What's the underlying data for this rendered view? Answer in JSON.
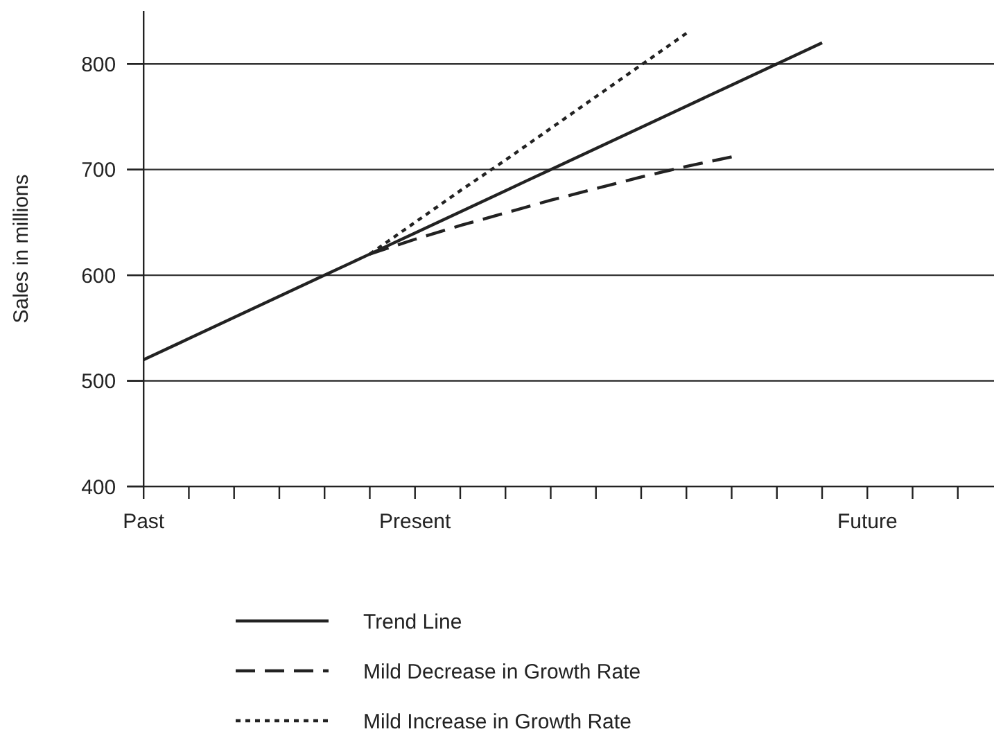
{
  "chart_data": {
    "type": "line",
    "ylabel": "Sales in millions",
    "ylim": [
      400,
      850
    ],
    "yticks": [
      400,
      500,
      600,
      700,
      800
    ],
    "categories": [
      "Past",
      null,
      null,
      null,
      null,
      null,
      "Present",
      null,
      null,
      null,
      null,
      null,
      null,
      null,
      null,
      null,
      "Future",
      null,
      null
    ],
    "grid": "y",
    "legend": "bottom",
    "marker": "none",
    "series": [
      {
        "name": "Trend Line",
        "color": "#222222",
        "line_style": "solid",
        "values": [
          520,
          540,
          560,
          580,
          600,
          620,
          640,
          660,
          680,
          700,
          720,
          740,
          760,
          780,
          800,
          820,
          null,
          null,
          null
        ]
      },
      {
        "name": "Mild Decrease in Growth Rate",
        "color": "#222222",
        "line_style": "dashed",
        "values": [
          null,
          null,
          null,
          null,
          null,
          620,
          634,
          647,
          659,
          671,
          682,
          693,
          703,
          712,
          null,
          null,
          null,
          null,
          null
        ]
      },
      {
        "name": "Mild Increase in Growth Rate",
        "color": "#222222",
        "line_style": "dotted",
        "values": [
          null,
          null,
          null,
          null,
          null,
          620,
          650,
          680,
          709,
          739,
          769,
          799,
          829,
          null,
          null,
          null,
          null,
          null,
          null
        ]
      }
    ]
  }
}
